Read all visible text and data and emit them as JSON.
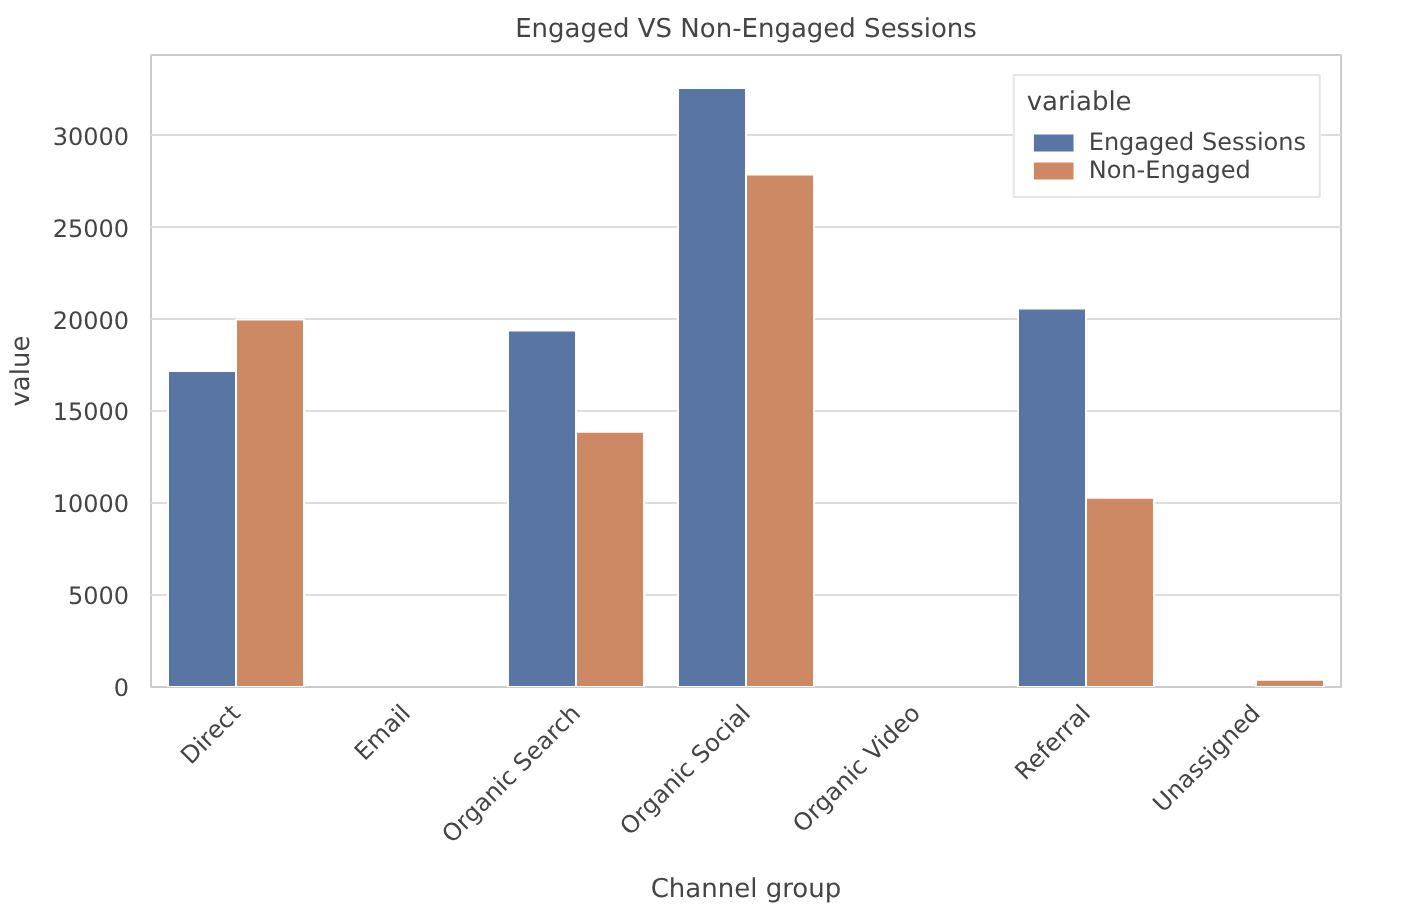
{
  "chart_data": {
    "type": "bar",
    "title": "Engaged VS Non-Engaged Sessions",
    "xlabel": "Channel group",
    "ylabel": "value",
    "legend_title": "variable",
    "categories": [
      "Direct",
      "Email",
      "Organic Search",
      "Organic Social",
      "Organic Video",
      "Referral",
      "Unassigned"
    ],
    "series": [
      {
        "name": "Engaged Sessions",
        "color": "#5975a4",
        "values": [
          17200,
          null,
          19400,
          32600,
          null,
          20600,
          null
        ]
      },
      {
        "name": "Non-Engaged",
        "color": "#cc8963",
        "values": [
          20000,
          null,
          13900,
          27900,
          null,
          10300,
          400
        ]
      }
    ],
    "ylim": [
      0,
      34400
    ],
    "yticks": [
      0,
      5000,
      10000,
      15000,
      20000,
      25000,
      30000
    ],
    "grid": "y",
    "legend": "top right"
  }
}
